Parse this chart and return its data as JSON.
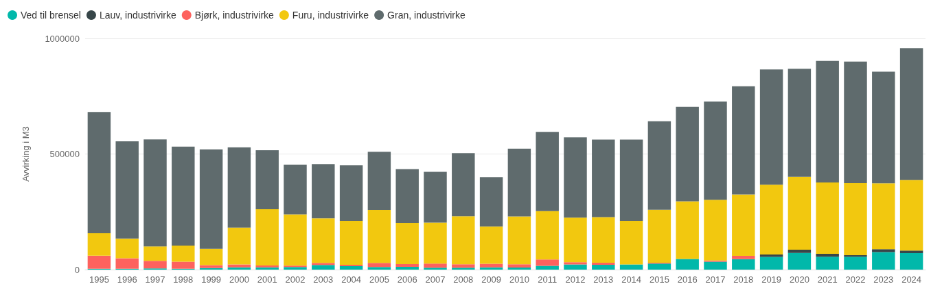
{
  "chart_data": {
    "type": "bar",
    "stacked": true,
    "ylabel": "Avvirking i M3",
    "categories": [
      "1995",
      "1996",
      "1997",
      "1998",
      "1999",
      "2000",
      "2001",
      "2002",
      "2003",
      "2004",
      "2005",
      "2006",
      "2007",
      "2008",
      "2009",
      "2010",
      "2011",
      "2012",
      "2013",
      "2014",
      "2015",
      "2016",
      "2017",
      "2018",
      "2019",
      "2020",
      "2021",
      "2022",
      "2023",
      "2024"
    ],
    "series": [
      {
        "name": "Ved til brensel",
        "color": "#01b8aa",
        "values": [
          4000,
          4000,
          5000,
          4000,
          7000,
          10000,
          10000,
          11000,
          20000,
          15000,
          11000,
          12000,
          8000,
          8000,
          10000,
          9000,
          16000,
          22000,
          21000,
          22000,
          26000,
          46000,
          34000,
          45000,
          55000,
          72000,
          56000,
          56000,
          76000,
          71000
        ]
      },
      {
        "name": "Lauv, industrivirke",
        "color": "#374649",
        "values": [
          0,
          0,
          0,
          0,
          0,
          0,
          0,
          0,
          0,
          0,
          0,
          0,
          0,
          0,
          0,
          0,
          0,
          0,
          0,
          0,
          0,
          0,
          0,
          0,
          10000,
          14000,
          12000,
          6000,
          12000,
          11000
        ]
      },
      {
        "name": "Bjørk, industrivirke",
        "color": "#fd625e",
        "values": [
          56000,
          45000,
          33000,
          30000,
          12000,
          12000,
          8000,
          6000,
          9000,
          6000,
          18000,
          12000,
          18000,
          15000,
          15000,
          14000,
          28000,
          10000,
          9000,
          null,
          4000,
          null,
          5000,
          14000,
          0,
          0,
          0,
          0,
          0,
          0
        ]
      },
      {
        "name": "Furu, industrivirke",
        "color": "#f2c80f",
        "values": [
          97000,
          85000,
          62000,
          70000,
          71000,
          160000,
          243000,
          222000,
          193000,
          190000,
          229000,
          178000,
          177000,
          208000,
          161000,
          207000,
          209000,
          193000,
          197000,
          189000,
          229000,
          249000,
          263000,
          266000,
          302000,
          315000,
          309000,
          312000,
          285000,
          306000
        ]
      },
      {
        "name": "Gran, industrivirke",
        "color": "#5f6b6d",
        "values": [
          525000,
          421000,
          463000,
          428000,
          430000,
          347000,
          255000,
          215000,
          234000,
          240000,
          252000,
          233000,
          220000,
          273000,
          214000,
          293000,
          343000,
          347000,
          335000,
          351000,
          383000,
          409000,
          425000,
          468000,
          499000,
          468000,
          526000,
          526000,
          483000,
          570000
        ]
      }
    ],
    "ylim": [
      0,
      1000000
    ],
    "yticks": [
      0,
      500000,
      1000000
    ],
    "grid": "y",
    "legend": "top left"
  }
}
